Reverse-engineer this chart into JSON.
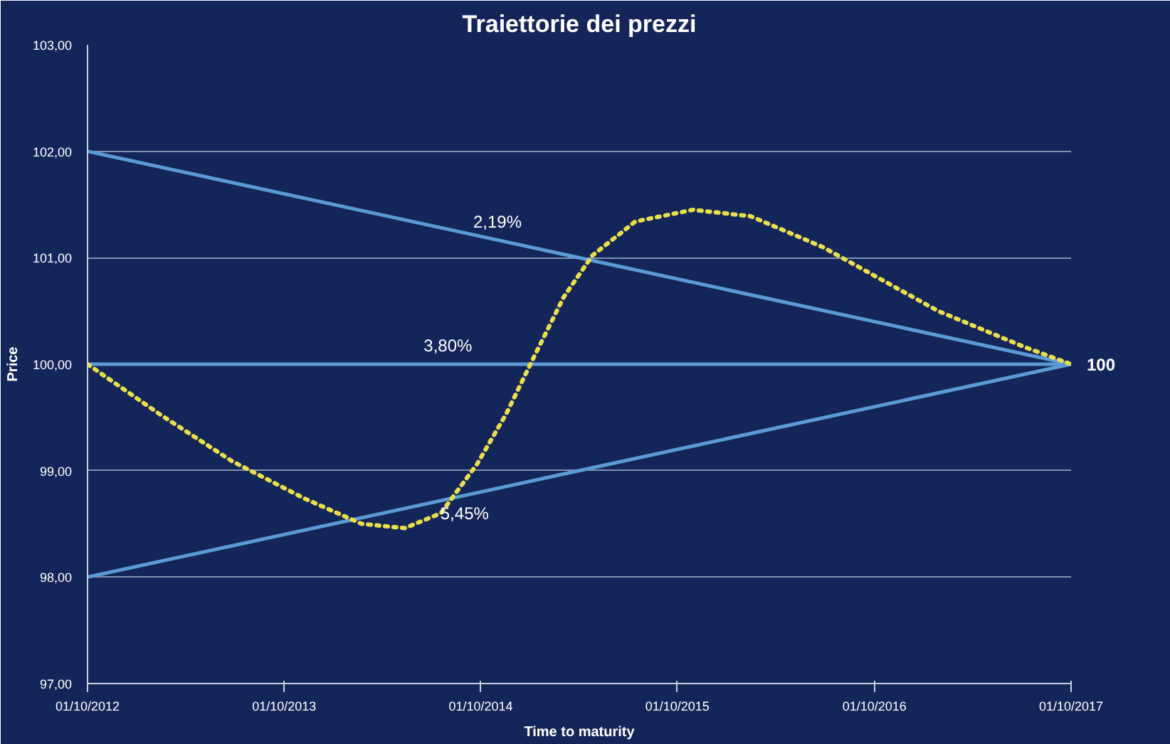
{
  "chart_data": {
    "type": "line",
    "title": "Traiettorie dei prezzi",
    "xlabel": "Time to maturity",
    "ylabel": "Price",
    "xlim": [
      "2012-10-01",
      "2017-10-01"
    ],
    "xticks": [
      {
        "value": "2012-10-01",
        "label": "01/10/2012"
      },
      {
        "value": "2013-10-01",
        "label": "01/10/2013"
      },
      {
        "value": "2014-10-01",
        "label": "01/10/2014"
      },
      {
        "value": "2015-10-01",
        "label": "01/10/2015"
      },
      {
        "value": "2016-10-01",
        "label": "01/10/2016"
      },
      {
        "value": "2017-10-01",
        "label": "01/10/2017"
      }
    ],
    "ylim": [
      97,
      103
    ],
    "yticks": [
      {
        "value": 97,
        "label": "97,00"
      },
      {
        "value": 98,
        "label": "98,00"
      },
      {
        "value": 99,
        "label": "99,00"
      },
      {
        "value": 100,
        "label": "100,00"
      },
      {
        "value": 101,
        "label": "101,00"
      },
      {
        "value": 102,
        "label": "102,00"
      },
      {
        "value": 103,
        "label": "103,00"
      }
    ],
    "grid": "y",
    "series": [
      {
        "color": "#5b9bd5",
        "x": [
          "2012-10-01",
          "2017-10-01"
        ],
        "values": [
          102,
          100
        ]
      },
      {
        "color": "#5b9bd5",
        "x": [
          "2012-10-01",
          "2017-10-01"
        ],
        "values": [
          100,
          100
        ]
      },
      {
        "color": "#5b9bd5",
        "x": [
          "2012-10-01",
          "2017-10-01"
        ],
        "values": [
          98,
          100
        ]
      },
      {
        "color": "#e8e04a",
        "line_style": "dotted",
        "x": [
          "2012-10-01",
          "2013-02-12",
          "2013-06-26",
          "2013-11-07",
          "2014-02-22",
          "2014-05-13",
          "2014-07-19",
          "2014-09-24",
          "2014-11-17",
          "2015-01-09",
          "2015-03-04",
          "2015-04-26",
          "2015-07-15",
          "2015-10-30",
          "2016-02-14",
          "2016-06-27",
          "2016-10-12",
          "2017-01-27",
          "2017-07-07",
          "2017-10-01"
        ],
        "values": [
          100.0,
          99.53,
          99.09,
          98.74,
          98.5,
          98.46,
          98.6,
          99.06,
          99.53,
          100.08,
          100.63,
          101.02,
          101.34,
          101.45,
          101.39,
          101.1,
          100.8,
          100.5,
          100.16,
          100.0
        ]
      }
    ],
    "annotations": [
      {
        "text": "2,19%",
        "x": "2014-11-01",
        "y": 101.16
      },
      {
        "text": "3,80%",
        "x": "2014-08-01",
        "y": 100
      },
      {
        "text": "5,45%",
        "x": "2014-09-01",
        "y": 98.77
      },
      {
        "text": "100",
        "x": "2017-10-01",
        "y": 100
      }
    ]
  }
}
